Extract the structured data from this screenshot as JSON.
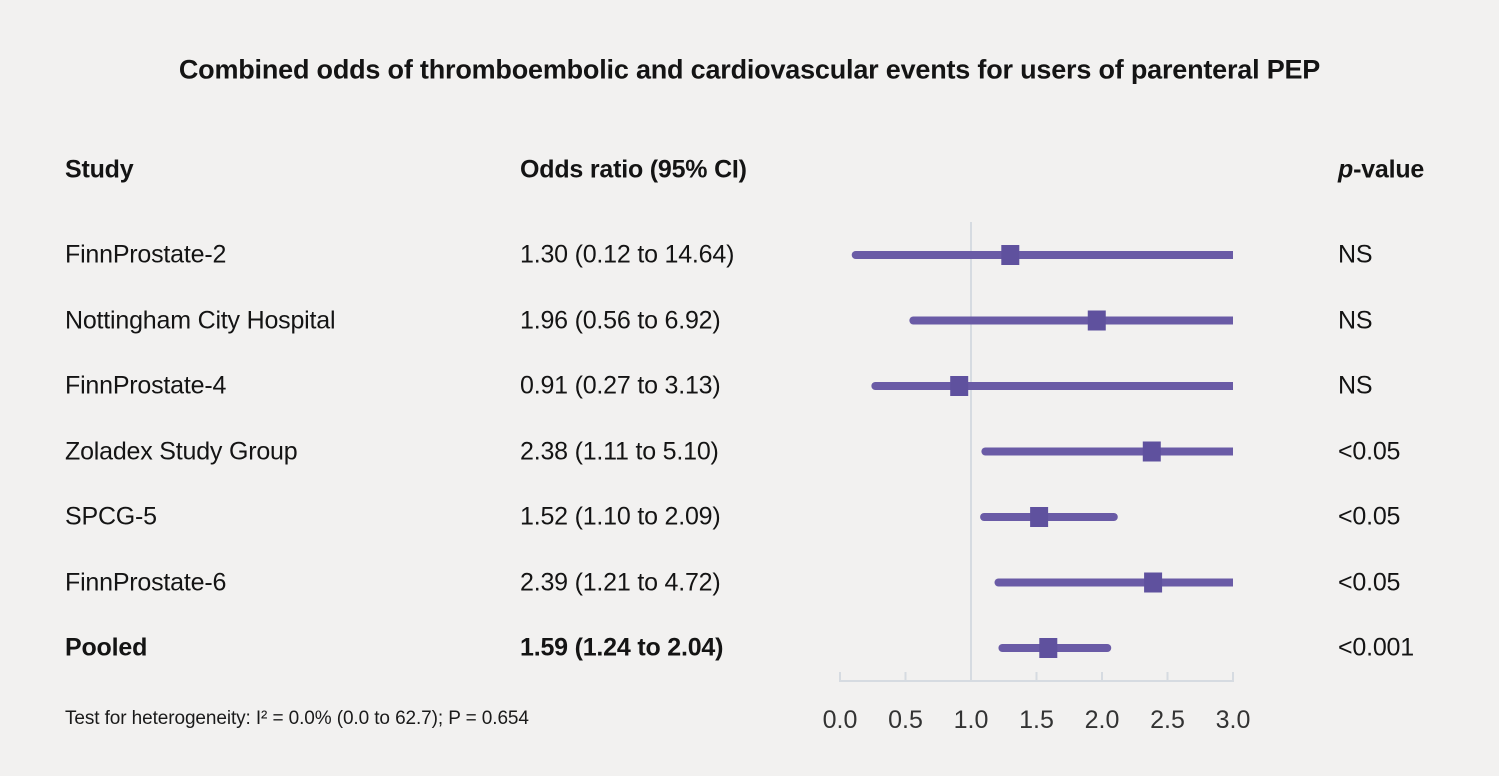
{
  "chart_data": {
    "type": "forest",
    "title": "Combined odds of thromboembolic and cardiovascular events for users of parenteral PEP",
    "columns": {
      "study": "Study",
      "odds_ratio": "Odds ratio (95% CI)",
      "p_italic": "p",
      "p_rest": "-value"
    },
    "rows": [
      {
        "study": "FinnProstate-2",
        "or_text": "1.30 (0.12 to 14.64)",
        "estimate": 1.3,
        "ci_low": 0.12,
        "ci_high": 14.64,
        "p": "NS",
        "bold": false
      },
      {
        "study": "Nottingham City Hospital",
        "or_text": "1.96 (0.56 to 6.92)",
        "estimate": 1.96,
        "ci_low": 0.56,
        "ci_high": 6.92,
        "p": "NS",
        "bold": false
      },
      {
        "study": "FinnProstate-4",
        "or_text": "0.91 (0.27 to 3.13)",
        "estimate": 0.91,
        "ci_low": 0.27,
        "ci_high": 3.13,
        "p": "NS",
        "bold": false
      },
      {
        "study": "Zoladex Study Group",
        "or_text": "2.38 (1.11 to 5.10)",
        "estimate": 2.38,
        "ci_low": 1.11,
        "ci_high": 5.1,
        "p": "<0.05",
        "bold": false
      },
      {
        "study": "SPCG-5",
        "or_text": "1.52 (1.10 to 2.09)",
        "estimate": 1.52,
        "ci_low": 1.1,
        "ci_high": 2.09,
        "p": "<0.05",
        "bold": false
      },
      {
        "study": "FinnProstate-6",
        "or_text": "2.39 (1.21 to 4.72)",
        "estimate": 2.39,
        "ci_low": 1.21,
        "ci_high": 4.72,
        "p": "<0.05",
        "bold": false
      },
      {
        "study": "Pooled",
        "or_text": "1.59 (1.24 to 2.04)",
        "estimate": 1.59,
        "ci_low": 1.24,
        "ci_high": 2.04,
        "p": "<0.001",
        "bold": true
      }
    ],
    "axis": {
      "xlim": [
        0.0,
        3.0
      ],
      "tick_values": [
        0,
        0.5,
        1,
        1.5,
        2,
        2.5,
        3
      ],
      "tick_labels": [
        "0.0",
        "0.5",
        "1.0",
        "1.5",
        "2.0",
        "2.5",
        "3.0"
      ],
      "reference_line": 1.0
    },
    "footnote": "Test for heterogeneity: I² = 0.0% (0.0 to 62.7); P = 0.654",
    "colors": {
      "ci_line": "#6A5BA6",
      "marker": "#5F519E",
      "axis_line": "#D6DBE1",
      "reference_line": "#D6DBE1",
      "tick_text": "#333333",
      "background": "#F2F1F0"
    }
  }
}
